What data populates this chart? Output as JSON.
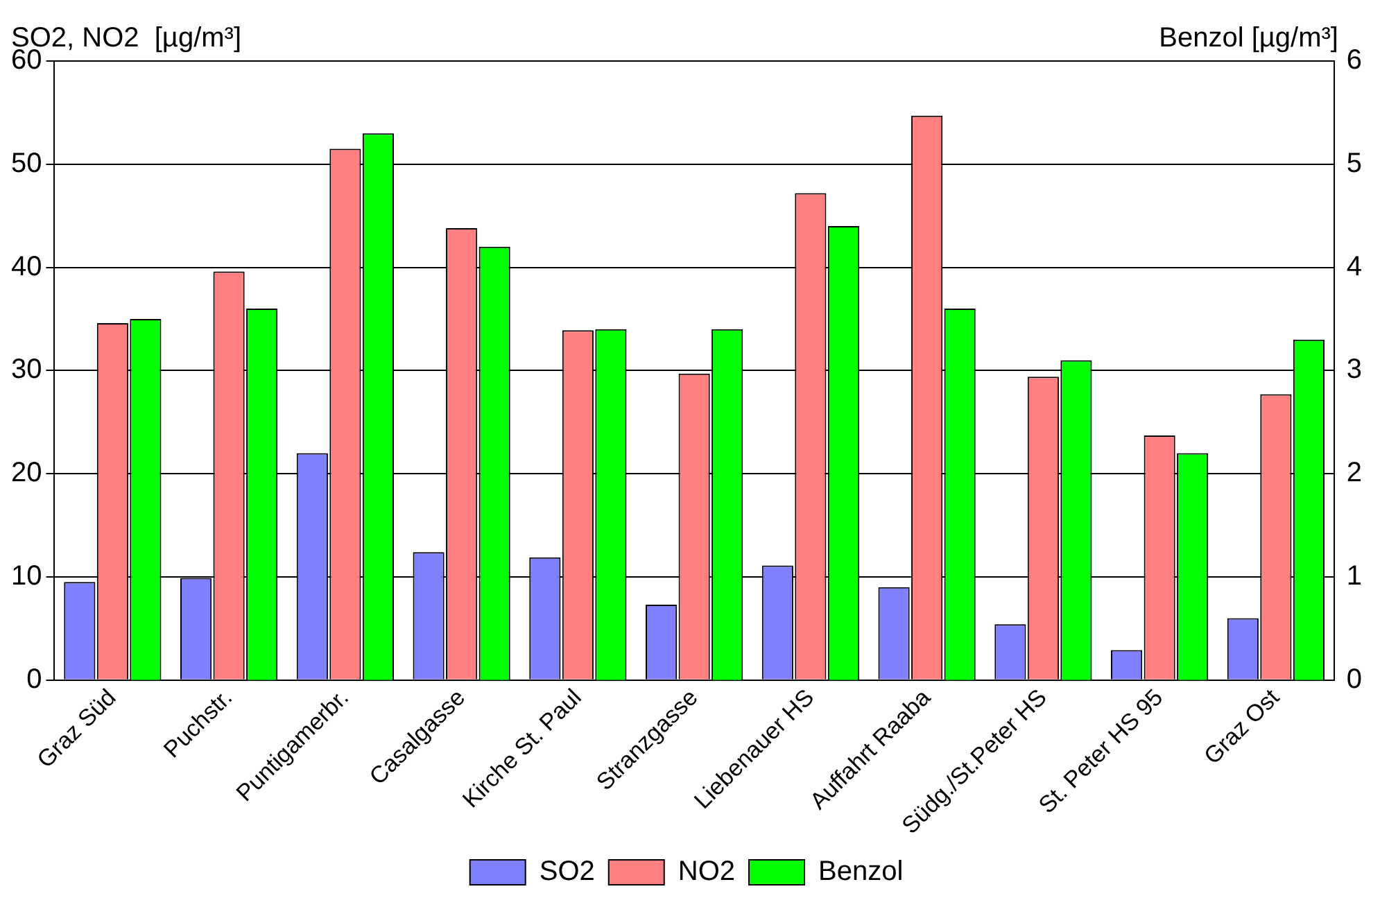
{
  "chart_data": {
    "type": "bar",
    "ylabel": "SO2, NO2  [µg/m³]",
    "y2label": "Benzol [µg/m³]",
    "categories": [
      "Graz Süd",
      "Puchstr.",
      "Puntigamerbr.",
      "Casalgasse",
      "Kirche St. Paul",
      "Stranzgasse",
      "Liebenauer HS",
      "Auffahrt Raaba",
      "Südg./St.Peter HS",
      "St. Peter HS 95",
      "Graz Ost"
    ],
    "series": [
      {
        "name": "SO2",
        "color": "#8080ff",
        "values": [
          9.5,
          9.9,
          22.0,
          12.4,
          11.9,
          7.3,
          11.1,
          9.0,
          5.4,
          2.9,
          6.0
        ]
      },
      {
        "name": "NO2",
        "color": "#ff8080",
        "values": [
          34.6,
          39.6,
          51.5,
          43.8,
          33.9,
          29.7,
          47.2,
          54.7,
          29.4,
          23.7,
          27.7
        ]
      },
      {
        "name": "Benzol",
        "color": "#00ff00",
        "axis": "y2",
        "values": [
          3.5,
          3.6,
          5.3,
          4.2,
          3.4,
          3.4,
          4.4,
          3.6,
          3.1,
          2.2,
          3.3
        ]
      }
    ],
    "ylim": [
      0,
      60
    ],
    "yticks": [
      0,
      10,
      20,
      30,
      40,
      50,
      60
    ],
    "y2lim": [
      0,
      6
    ],
    "y2ticks": [
      0,
      1,
      2,
      3,
      4,
      5,
      6
    ],
    "grid": "y",
    "legend": "bottom"
  }
}
